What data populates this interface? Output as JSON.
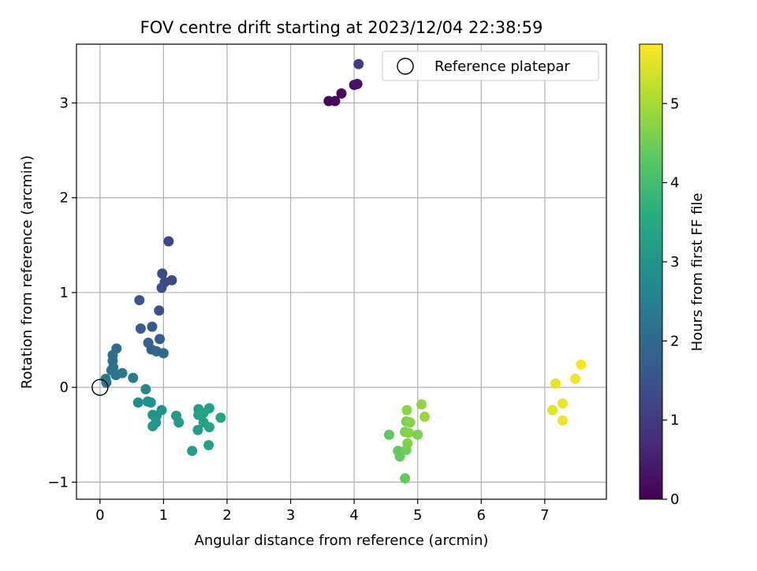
{
  "chart_data": {
    "type": "scatter",
    "title": "FOV centre drift starting at 2023/12/04 22:38:59",
    "xlabel": "Angular distance from reference (arcmin)",
    "ylabel": "Rotation from reference (arcmin)",
    "xlim": [
      -0.37,
      7.97
    ],
    "ylim": [
      -1.18,
      3.62
    ],
    "x_ticks": [
      0,
      1,
      2,
      3,
      4,
      5,
      6,
      7
    ],
    "y_ticks": [
      -1,
      0,
      1,
      2,
      3
    ],
    "x_tick_labels": [
      "0",
      "1",
      "2",
      "3",
      "4",
      "5",
      "6",
      "7"
    ],
    "y_tick_labels": [
      "−1",
      "0",
      "1",
      "2",
      "3"
    ],
    "grid": true,
    "colorbar": {
      "label": "Hours from first FF file",
      "colormap": "viridis",
      "range": [
        0,
        5.75
      ],
      "ticks": [
        0,
        1,
        2,
        3,
        4,
        5
      ],
      "tick_labels": [
        "0",
        "1",
        "2",
        "3",
        "4",
        "5"
      ]
    },
    "legend": {
      "position": "top-right",
      "entries": [
        {
          "label": "Reference platepar",
          "marker": "open-circle"
        }
      ]
    },
    "reference_point": {
      "x": 0,
      "y": 0
    },
    "points": [
      {
        "x": 3.6,
        "y": 3.02,
        "h": 0.05
      },
      {
        "x": 3.7,
        "y": 3.02,
        "h": 0.1
      },
      {
        "x": 3.8,
        "y": 3.1,
        "h": 0.15
      },
      {
        "x": 4.0,
        "y": 3.19,
        "h": 0.2
      },
      {
        "x": 4.05,
        "y": 3.2,
        "h": 0.3
      },
      {
        "x": 4.07,
        "y": 3.41,
        "h": 1.0
      },
      {
        "x": 1.08,
        "y": 1.54,
        "h": 1.2
      },
      {
        "x": 0.98,
        "y": 1.2,
        "h": 1.3
      },
      {
        "x": 1.13,
        "y": 1.13,
        "h": 1.3
      },
      {
        "x": 1.02,
        "y": 1.11,
        "h": 1.35
      },
      {
        "x": 0.97,
        "y": 1.05,
        "h": 1.4
      },
      {
        "x": 0.93,
        "y": 0.81,
        "h": 1.5
      },
      {
        "x": 0.62,
        "y": 0.92,
        "h": 1.6
      },
      {
        "x": 0.82,
        "y": 0.64,
        "h": 1.65
      },
      {
        "x": 0.64,
        "y": 0.62,
        "h": 1.7
      },
      {
        "x": 0.94,
        "y": 0.51,
        "h": 1.75
      },
      {
        "x": 0.76,
        "y": 0.47,
        "h": 1.8
      },
      {
        "x": 0.81,
        "y": 0.4,
        "h": 1.85
      },
      {
        "x": 0.89,
        "y": 0.38,
        "h": 1.9
      },
      {
        "x": 1.0,
        "y": 0.36,
        "h": 1.95
      },
      {
        "x": 0.26,
        "y": 0.41,
        "h": 2.0
      },
      {
        "x": 0.2,
        "y": 0.34,
        "h": 2.05
      },
      {
        "x": 0.2,
        "y": 0.28,
        "h": 2.1
      },
      {
        "x": 0.21,
        "y": 0.21,
        "h": 2.15
      },
      {
        "x": 0.18,
        "y": 0.18,
        "h": 2.2
      },
      {
        "x": 0.25,
        "y": 0.13,
        "h": 2.25
      },
      {
        "x": 0.35,
        "y": 0.15,
        "h": 2.35
      },
      {
        "x": 0.52,
        "y": 0.1,
        "h": 2.4
      },
      {
        "x": 0.09,
        "y": 0.09,
        "h": 2.3
      },
      {
        "x": 0.1,
        "y": 0.05,
        "h": 2.3
      },
      {
        "x": 0.72,
        "y": -0.02,
        "h": 2.7
      },
      {
        "x": 0.6,
        "y": -0.16,
        "h": 2.8
      },
      {
        "x": 0.75,
        "y": -0.15,
        "h": 2.85
      },
      {
        "x": 0.8,
        "y": -0.16,
        "h": 2.9
      },
      {
        "x": 0.97,
        "y": -0.24,
        "h": 2.95
      },
      {
        "x": 0.83,
        "y": -0.29,
        "h": 3.0
      },
      {
        "x": 0.89,
        "y": -0.3,
        "h": 3.0
      },
      {
        "x": 0.88,
        "y": -0.37,
        "h": 3.05
      },
      {
        "x": 0.83,
        "y": -0.41,
        "h": 3.05
      },
      {
        "x": 1.2,
        "y": -0.3,
        "h": 3.1
      },
      {
        "x": 1.24,
        "y": -0.37,
        "h": 3.1
      },
      {
        "x": 1.45,
        "y": -0.67,
        "h": 3.2
      },
      {
        "x": 1.54,
        "y": -0.45,
        "h": 3.2
      },
      {
        "x": 1.55,
        "y": -0.23,
        "h": 3.25
      },
      {
        "x": 1.55,
        "y": -0.29,
        "h": 3.25
      },
      {
        "x": 1.63,
        "y": -0.27,
        "h": 3.3
      },
      {
        "x": 1.63,
        "y": -0.37,
        "h": 3.3
      },
      {
        "x": 1.72,
        "y": -0.22,
        "h": 3.3
      },
      {
        "x": 1.72,
        "y": -0.42,
        "h": 3.35
      },
      {
        "x": 1.71,
        "y": -0.61,
        "h": 3.35
      },
      {
        "x": 1.9,
        "y": -0.32,
        "h": 3.4
      },
      {
        "x": 4.55,
        "y": -0.5,
        "h": 4.3
      },
      {
        "x": 4.69,
        "y": -0.67,
        "h": 4.35
      },
      {
        "x": 4.72,
        "y": -0.73,
        "h": 4.4
      },
      {
        "x": 4.8,
        "y": -0.96,
        "h": 4.4
      },
      {
        "x": 4.82,
        "y": -0.66,
        "h": 4.5
      },
      {
        "x": 4.82,
        "y": -0.36,
        "h": 4.6
      },
      {
        "x": 4.8,
        "y": -0.47,
        "h": 4.6
      },
      {
        "x": 4.84,
        "y": -0.59,
        "h": 4.65
      },
      {
        "x": 4.86,
        "y": -0.48,
        "h": 4.7
      },
      {
        "x": 4.83,
        "y": -0.24,
        "h": 4.75
      },
      {
        "x": 4.88,
        "y": -0.37,
        "h": 4.7
      },
      {
        "x": 5.0,
        "y": -0.5,
        "h": 4.6
      },
      {
        "x": 5.06,
        "y": -0.18,
        "h": 4.8
      },
      {
        "x": 5.11,
        "y": -0.31,
        "h": 4.85
      },
      {
        "x": 7.12,
        "y": -0.24,
        "h": 5.5
      },
      {
        "x": 7.17,
        "y": 0.04,
        "h": 5.55
      },
      {
        "x": 7.28,
        "y": -0.17,
        "h": 5.6
      },
      {
        "x": 7.28,
        "y": -0.35,
        "h": 5.6
      },
      {
        "x": 7.48,
        "y": 0.09,
        "h": 5.65
      },
      {
        "x": 7.57,
        "y": 0.24,
        "h": 5.7
      }
    ]
  }
}
